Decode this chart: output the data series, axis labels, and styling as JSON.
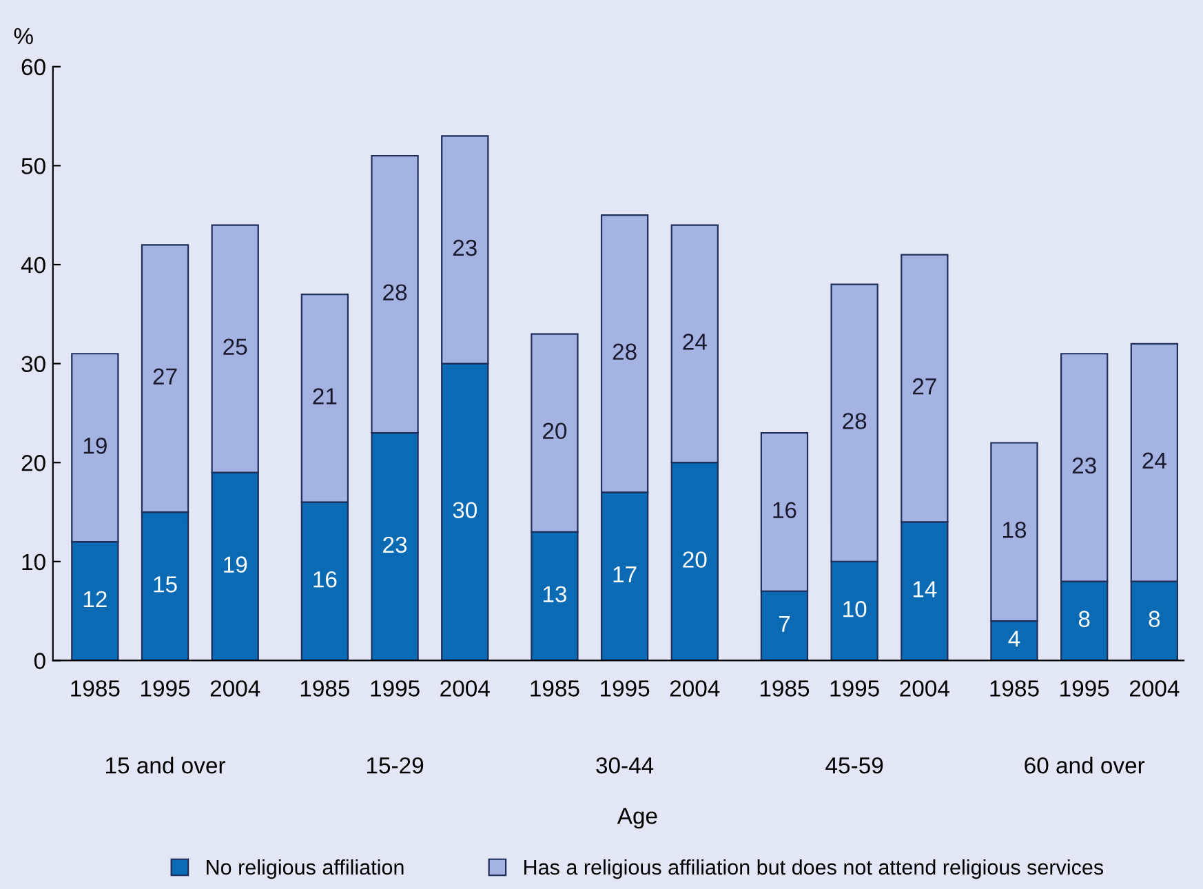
{
  "chart_data": {
    "type": "bar",
    "stacked": true,
    "ylabel": "%",
    "xlabel": "Age",
    "categories": [
      "1985",
      "1995",
      "2004",
      "1985",
      "1995",
      "2004",
      "1985",
      "1995",
      "2004",
      "1985",
      "1995",
      "2004",
      "1985",
      "1995",
      "2004"
    ],
    "series": [
      {
        "name": "No religious affiliation",
        "color": "#0a6ab4",
        "values": [
          12,
          15,
          19,
          16,
          23,
          30,
          13,
          17,
          20,
          7,
          10,
          14,
          4,
          8,
          8
        ]
      },
      {
        "name": "Has a religious affiliation but does not attend religious services",
        "color": "#a4b3e1",
        "values": [
          19,
          27,
          25,
          21,
          28,
          23,
          20,
          28,
          24,
          16,
          28,
          27,
          18,
          23,
          24
        ]
      }
    ],
    "annotations": [
      "15 and over",
      "15-29",
      "30-44",
      "45-59",
      "60 and over"
    ],
    "ylim": [
      0,
      60
    ],
    "yticks": [
      0,
      10,
      20,
      30,
      40,
      50,
      60
    ],
    "grid": false,
    "legend": "bottom",
    "data_labels": true
  }
}
